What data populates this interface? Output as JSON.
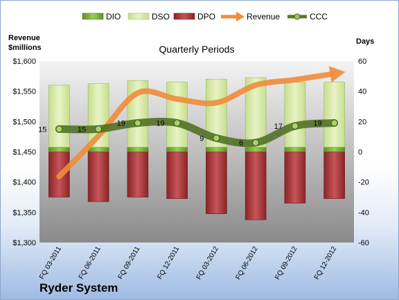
{
  "chart_data": {
    "type": "bar",
    "title": "Quarterly Periods",
    "company": "Ryder System",
    "ylabel_left": [
      "Revenue",
      "$millions"
    ],
    "ylabel_right": "Days",
    "categories": [
      "FQ 03-2011",
      "FQ 06-2011",
      "FQ 09-2011",
      "FQ 12-2011",
      "FQ 03-2012",
      "FQ 06-2012",
      "FQ 09-2012",
      "FQ 12-2012"
    ],
    "ylim_left": [
      1300,
      1600
    ],
    "ylim_right": [
      -60,
      60
    ],
    "yticks_left": [
      "$1,600",
      "$1,550",
      "$1,500",
      "$1,450",
      "$1,400",
      "$1,350",
      "$1,300"
    ],
    "yticks_right": [
      "60",
      "40",
      "20",
      "0",
      "-20",
      "-40",
      "-60"
    ],
    "legend": [
      "DIO",
      "DSO",
      "DPO",
      "Revenue",
      "CCC"
    ],
    "legend_position": "top",
    "series": [
      {
        "name": "DIO",
        "axis": "right",
        "kind": "stacked-bar",
        "color": "#7fae3a",
        "values": [
          3,
          3,
          3,
          3,
          3,
          3,
          3,
          3
        ]
      },
      {
        "name": "DSO",
        "axis": "right",
        "kind": "stacked-bar",
        "color": "#d7e8a8",
        "values": [
          41,
          42,
          44,
          43,
          45,
          46,
          43,
          43
        ]
      },
      {
        "name": "DPO",
        "axis": "right",
        "kind": "stacked-bar",
        "color": "#a8393c",
        "values": [
          -30,
          -33,
          -30,
          -31,
          -41,
          -45,
          -34,
          -31
        ]
      },
      {
        "name": "Revenue",
        "axis": "left",
        "kind": "line",
        "color": "#f08c3a",
        "values": [
          1409,
          1476,
          1547,
          1537,
          1531,
          1560,
          1569,
          1579
        ]
      },
      {
        "name": "CCC",
        "axis": "right",
        "kind": "line",
        "color": "#5a7a2a",
        "values": [
          15,
          15,
          19,
          19,
          9,
          6,
          17,
          19
        ]
      }
    ]
  }
}
